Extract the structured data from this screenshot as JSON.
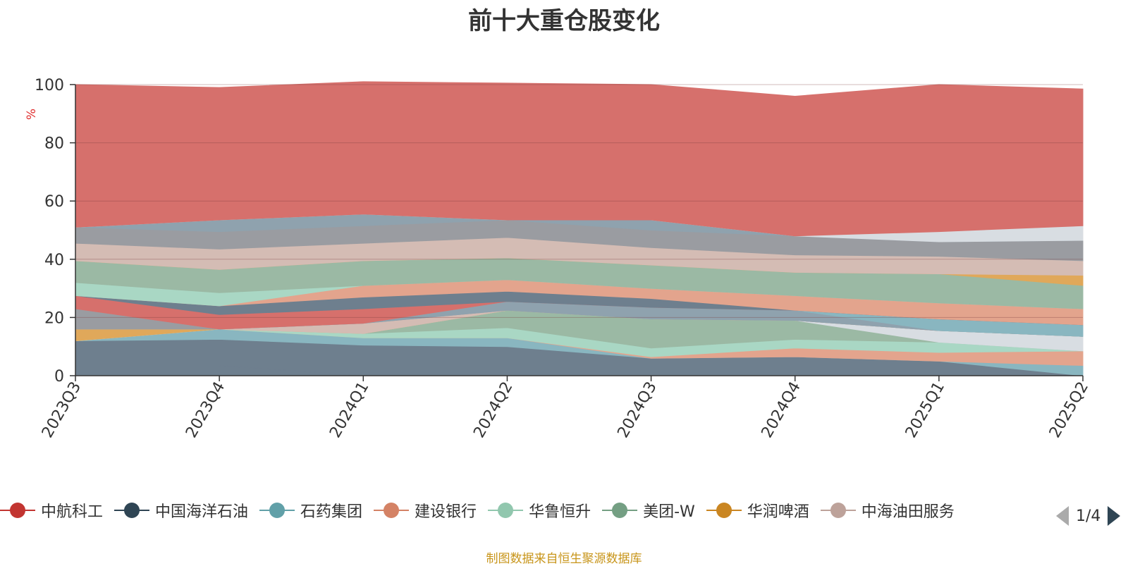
{
  "title": "前十大重仓股变化",
  "footer": "制图数据来自恒生聚源数据库",
  "pager": {
    "text": "1/4"
  },
  "chart_data": {
    "type": "area",
    "stacked": true,
    "ylabel": "%",
    "ylim": [
      0,
      100
    ],
    "yticks": [
      0,
      20,
      40,
      60,
      80,
      100
    ],
    "x": [
      "2023Q3",
      "2023Q4",
      "2024Q1",
      "2024Q2",
      "2024Q3",
      "2024Q4",
      "2025Q1",
      "2025Q2"
    ],
    "grid": true,
    "legend_position": "bottom",
    "series": [
      {
        "name": "",
        "color": "#6e7f8e",
        "values": [
          3.5,
          3.5,
          0,
          0,
          0,
          0,
          0,
          0
        ]
      },
      {
        "name": "",
        "color": "#6e7f8e",
        "values": [
          8.5,
          9,
          10.5,
          10,
          6,
          6.5,
          5,
          0
        ]
      },
      {
        "name": "",
        "color": "#89b6c0",
        "values": [
          0,
          3.5,
          2.5,
          3,
          0,
          0,
          0,
          3.5
        ]
      },
      {
        "name": "",
        "color": "#e3a48d",
        "values": [
          0,
          0,
          0,
          0,
          0.5,
          3,
          3,
          5
        ]
      },
      {
        "name": "",
        "color": "#a9d7c4",
        "values": [
          0,
          0,
          1.5,
          3.5,
          3,
          3,
          3.5,
          0
        ]
      },
      {
        "name": "",
        "color": "#9bb9a4",
        "values": [
          0,
          0,
          0,
          6,
          10,
          6.5,
          0,
          0
        ]
      },
      {
        "name": "",
        "color": "#d8dde2",
        "values": [
          0,
          0,
          0,
          0,
          0,
          0,
          4,
          5
        ]
      },
      {
        "name": "",
        "color": "#e0a85a",
        "values": [
          4,
          0,
          0,
          0,
          0,
          0,
          0,
          0
        ]
      },
      {
        "name": "",
        "color": "#d4bcb4",
        "values": [
          0,
          0,
          3.5,
          0,
          0,
          0,
          0,
          0
        ]
      },
      {
        "name": "",
        "color": "#9a9ca1",
        "values": [
          7,
          0,
          0,
          0,
          0,
          0,
          0,
          0
        ]
      },
      {
        "name": "",
        "color": "#8fa2ae",
        "values": [
          0,
          0,
          0,
          3,
          4,
          3.5,
          0,
          0
        ]
      },
      {
        "name": "",
        "color": "#89b6c0",
        "values": [
          0,
          0,
          0,
          0,
          0,
          0,
          4,
          4
        ]
      },
      {
        "name": "",
        "color": "#d6706c",
        "values": [
          4.5,
          5,
          5,
          0,
          0,
          0,
          0,
          0
        ]
      },
      {
        "name": "",
        "color": "#6e7f8e",
        "values": [
          0,
          3,
          4,
          3.5,
          3,
          0,
          0,
          0
        ]
      },
      {
        "name": "",
        "color": "#e3a48d",
        "values": [
          0,
          0,
          4,
          4,
          3.5,
          5,
          5.5,
          5.5
        ]
      },
      {
        "name": "",
        "color": "#a9d7c4",
        "values": [
          4.5,
          4.5,
          0,
          0,
          0,
          0,
          0,
          0
        ]
      },
      {
        "name": "",
        "color": "#9bb9a4",
        "values": [
          7.5,
          8,
          8.5,
          7.5,
          8,
          8,
          10,
          8
        ]
      },
      {
        "name": "",
        "color": "#e0a85a",
        "values": [
          0,
          0,
          0,
          0,
          0,
          0,
          0,
          3.5
        ]
      },
      {
        "name": "",
        "color": "#d4bcb4",
        "values": [
          6,
          7,
          6,
          7,
          6,
          6,
          6,
          5
        ]
      },
      {
        "name": "",
        "color": "#9a9ca1",
        "values": [
          5.5,
          6,
          6,
          6,
          6,
          6.5,
          5,
          7
        ]
      },
      {
        "name": "",
        "color": "#8fa2ae",
        "values": [
          0,
          4,
          4,
          0,
          3.5,
          0,
          0,
          0
        ]
      },
      {
        "name": "",
        "color": "#d8dde2",
        "values": [
          0,
          0,
          0,
          0,
          0,
          0,
          3.5,
          5
        ]
      },
      {
        "name": "",
        "color": "#d6706c",
        "values": [
          49,
          45.5,
          45.5,
          47,
          46.5,
          48,
          50.5,
          47
        ]
      }
    ],
    "legend": [
      {
        "label": "中航科工",
        "color": "#c23531"
      },
      {
        "label": "中国海洋石油",
        "color": "#2f4554"
      },
      {
        "label": "石药集团",
        "color": "#61a0a8"
      },
      {
        "label": "建设银行",
        "color": "#d48265"
      },
      {
        "label": "华鲁恒升",
        "color": "#91c7ae"
      },
      {
        "label": "美团-W",
        "color": "#749f83"
      },
      {
        "label": "华润啤酒",
        "color": "#ca8622"
      },
      {
        "label": "中海油田服务",
        "color": "#bda29a"
      }
    ]
  }
}
